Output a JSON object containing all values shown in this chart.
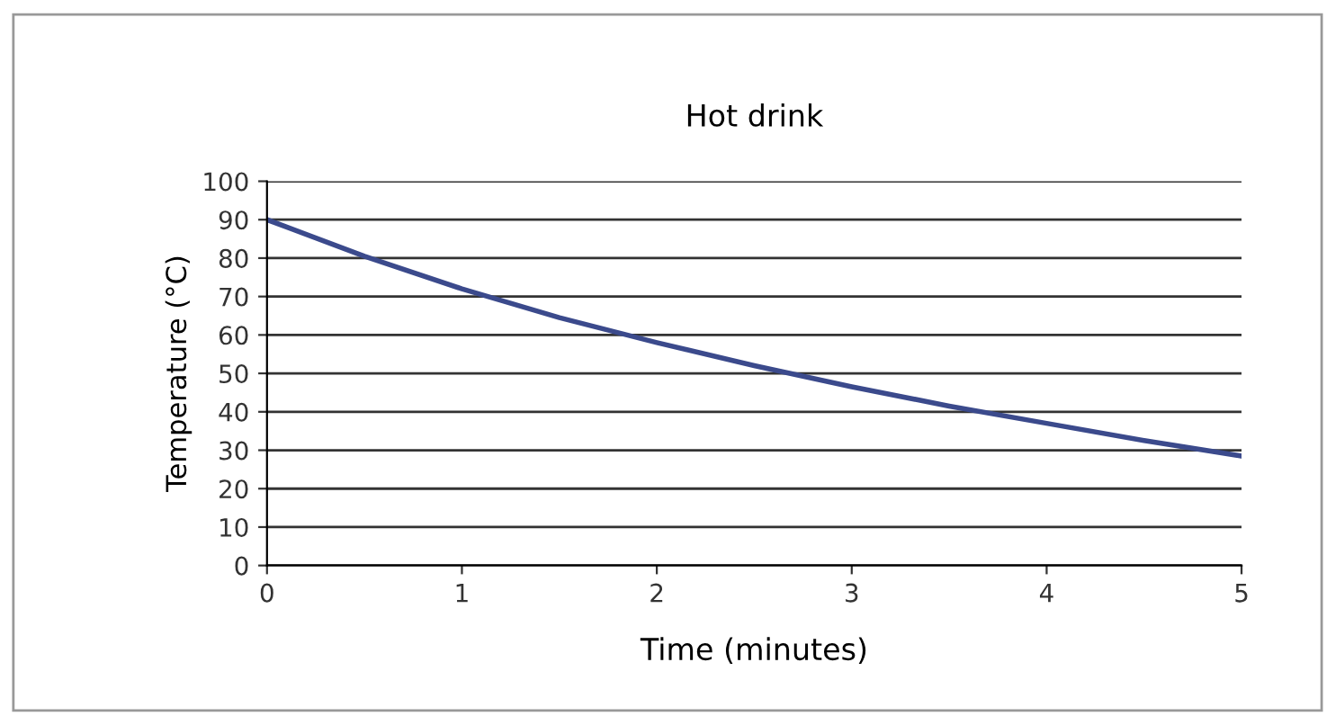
{
  "chart_data": {
    "type": "line",
    "title": "Hot drink",
    "xlabel": "Time (minutes)",
    "ylabel": "Temperature (°C)",
    "x": [
      0,
      0.5,
      1,
      1.5,
      2,
      2.5,
      3,
      3.5,
      4,
      4.5,
      5
    ],
    "series": [
      {
        "color": "#3b4a8c",
        "values": [
          90,
          80.5,
          72,
          64.5,
          58,
          52,
          46.5,
          41.5,
          37,
          32.5,
          28.5
        ]
      }
    ],
    "xlim": [
      0,
      5
    ],
    "ylim": [
      0,
      100
    ],
    "xticks": [
      0,
      1,
      2,
      3,
      4,
      5
    ],
    "yticks": [
      0,
      10,
      20,
      30,
      40,
      50,
      60,
      70,
      80,
      90,
      100
    ],
    "grid": "y",
    "legend": false,
    "marker": "none",
    "line_style": "solid"
  }
}
